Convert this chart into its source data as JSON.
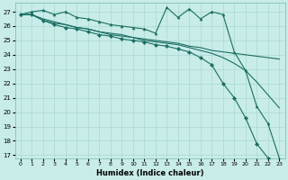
{
  "xlabel": "Humidex (Indice chaleur)",
  "bg_color": "#c8ece8",
  "grid_color": "#aad8d0",
  "line_color": "#1a6e62",
  "xlim": [
    -0.5,
    23.5
  ],
  "ylim": [
    16.8,
    27.6
  ],
  "yticks": [
    17,
    18,
    19,
    20,
    21,
    22,
    23,
    24,
    25,
    26,
    27
  ],
  "xticks": [
    0,
    1,
    2,
    3,
    4,
    5,
    6,
    7,
    8,
    9,
    10,
    11,
    12,
    13,
    14,
    15,
    16,
    17,
    18,
    19,
    20,
    21,
    22,
    23
  ],
  "line1_x": [
    0,
    1,
    2,
    3,
    4,
    5,
    6,
    7,
    8,
    9,
    10,
    11,
    12,
    13,
    14,
    15,
    16,
    17,
    18,
    19,
    20,
    21,
    22,
    23
  ],
  "line1_y": [
    26.8,
    27.0,
    27.1,
    26.8,
    27.0,
    26.6,
    26.5,
    26.3,
    26.1,
    26.0,
    25.9,
    25.8,
    25.5,
    27.3,
    26.6,
    27.2,
    26.5,
    27.0,
    26.8,
    24.2,
    22.9,
    20.4,
    19.2,
    16.8
  ],
  "line2_x": [
    0,
    1,
    2,
    3,
    4,
    5,
    6,
    7,
    8,
    9,
    10,
    11,
    12,
    13,
    14,
    15,
    16,
    17,
    18,
    19,
    20,
    21,
    22,
    23
  ],
  "line2_y": [
    26.8,
    26.8,
    26.5,
    26.3,
    26.1,
    25.9,
    25.8,
    25.6,
    25.5,
    25.4,
    25.2,
    25.1,
    25.0,
    24.9,
    24.8,
    24.6,
    24.5,
    24.3,
    24.2,
    24.1,
    24.0,
    23.9,
    23.8,
    23.7
  ],
  "line3_x": [
    0,
    1,
    2,
    3,
    4,
    5,
    6,
    7,
    8,
    9,
    10,
    11,
    12,
    13,
    14,
    15,
    16,
    17,
    18,
    19,
    20,
    21,
    22,
    23
  ],
  "line3_y": [
    26.8,
    26.8,
    26.4,
    26.2,
    26.1,
    25.9,
    25.8,
    25.6,
    25.4,
    25.3,
    25.2,
    25.0,
    24.9,
    24.8,
    24.7,
    24.5,
    24.3,
    24.1,
    23.8,
    23.4,
    22.9,
    22.1,
    21.2,
    20.3
  ],
  "line4_x": [
    0,
    1,
    2,
    3,
    4,
    5,
    6,
    7,
    8,
    9,
    10,
    11,
    12,
    13,
    14,
    15,
    16,
    17,
    18,
    19,
    20,
    21,
    22,
    23
  ],
  "line4_y": [
    26.8,
    26.8,
    26.4,
    26.1,
    25.9,
    25.8,
    25.6,
    25.4,
    25.3,
    25.1,
    25.0,
    24.9,
    24.7,
    24.6,
    24.4,
    24.2,
    23.8,
    23.3,
    22.0,
    21.0,
    19.6,
    17.8,
    16.8,
    16.6
  ]
}
